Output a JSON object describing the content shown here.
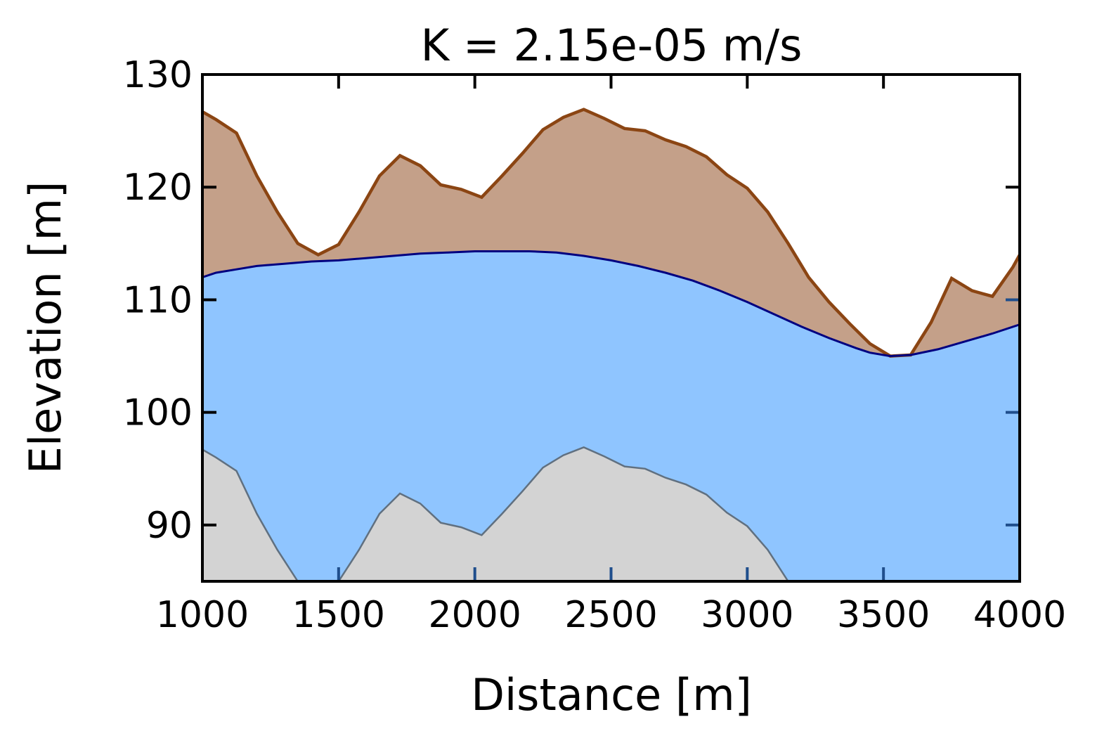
{
  "chart_data": {
    "type": "area",
    "title": "K = 2.15e-05 m/s",
    "xlabel": "Distance [m]",
    "ylabel": "Elevation [m]",
    "xlim": [
      1000,
      4000
    ],
    "ylim": [
      85,
      130
    ],
    "xticks": [
      1000,
      1500,
      2000,
      2500,
      3000,
      3500,
      4000
    ],
    "xtick_labels": [
      "1000",
      "1500",
      "2000",
      "2500",
      "3000",
      "3500",
      "4000"
    ],
    "yticks": [
      90,
      100,
      110,
      120,
      130
    ],
    "ytick_labels": [
      "90",
      "100",
      "110",
      "120",
      "130"
    ],
    "grid": false,
    "colors": {
      "surface_line": "#8b4513",
      "surface_fill": "#c4a089",
      "water_line": "#000080",
      "water_fill": "#8fc5ff",
      "bedrock_line": "#607080",
      "bedrock_fill": "#d3d3d3",
      "tick_on_water": "#1f4e8c"
    },
    "series": [
      {
        "key": "surface",
        "x": [
          1000,
          1050,
          1125,
          1200,
          1275,
          1350,
          1425,
          1500,
          1575,
          1650,
          1725,
          1800,
          1875,
          1950,
          2025,
          2100,
          2175,
          2250,
          2325,
          2400,
          2475,
          2550,
          2625,
          2700,
          2775,
          2850,
          2925,
          3000,
          3075,
          3150,
          3225,
          3300,
          3375,
          3450,
          3525,
          3600,
          3675,
          3750,
          3825,
          3900,
          3975,
          4000
        ],
        "y": [
          126.7,
          126.0,
          124.8,
          121.0,
          117.8,
          115.0,
          114.0,
          114.9,
          117.8,
          121.0,
          122.8,
          121.9,
          120.2,
          119.8,
          119.1,
          121.0,
          123.0,
          125.1,
          126.2,
          126.9,
          126.1,
          125.2,
          125.0,
          124.2,
          123.6,
          122.7,
          121.1,
          119.9,
          117.8,
          115.0,
          112.0,
          109.8,
          107.9,
          106.1,
          105.0,
          105.1,
          108.0,
          111.9,
          110.8,
          110.3,
          112.9,
          114.0
        ]
      },
      {
        "key": "water_table",
        "x": [
          1000,
          1050,
          1125,
          1200,
          1300,
          1400,
          1500,
          1600,
          1700,
          1800,
          1900,
          2000,
          2100,
          2200,
          2300,
          2400,
          2500,
          2600,
          2700,
          2800,
          2900,
          3000,
          3100,
          3200,
          3300,
          3400,
          3450,
          3525,
          3600,
          3700,
          3800,
          3900,
          4000
        ],
        "y": [
          112.0,
          112.4,
          112.7,
          113.0,
          113.2,
          113.4,
          113.5,
          113.7,
          113.9,
          114.1,
          114.2,
          114.3,
          114.3,
          114.3,
          114.2,
          113.9,
          113.5,
          113.0,
          112.4,
          111.7,
          110.8,
          109.8,
          108.7,
          107.6,
          106.6,
          105.7,
          105.3,
          105.0,
          105.1,
          105.6,
          106.3,
          107.0,
          107.8
        ]
      },
      {
        "key": "bedrock",
        "x": [
          1000,
          1050,
          1125,
          1200,
          1275,
          1350,
          1500,
          1575,
          1650,
          1725,
          1800,
          1875,
          1950,
          2025,
          2100,
          2175,
          2250,
          2325,
          2400,
          2475,
          2550,
          2625,
          2700,
          2775,
          2850,
          2925,
          3000,
          3075,
          3150
        ],
        "y": [
          96.7,
          96.0,
          94.8,
          91.0,
          87.8,
          85.0,
          85.0,
          87.8,
          91.0,
          92.8,
          91.9,
          90.2,
          89.8,
          89.1,
          91.0,
          93.0,
          95.1,
          96.2,
          96.9,
          96.1,
          95.2,
          95.0,
          94.2,
          93.6,
          92.7,
          91.1,
          89.9,
          87.8,
          85.0
        ]
      }
    ]
  }
}
